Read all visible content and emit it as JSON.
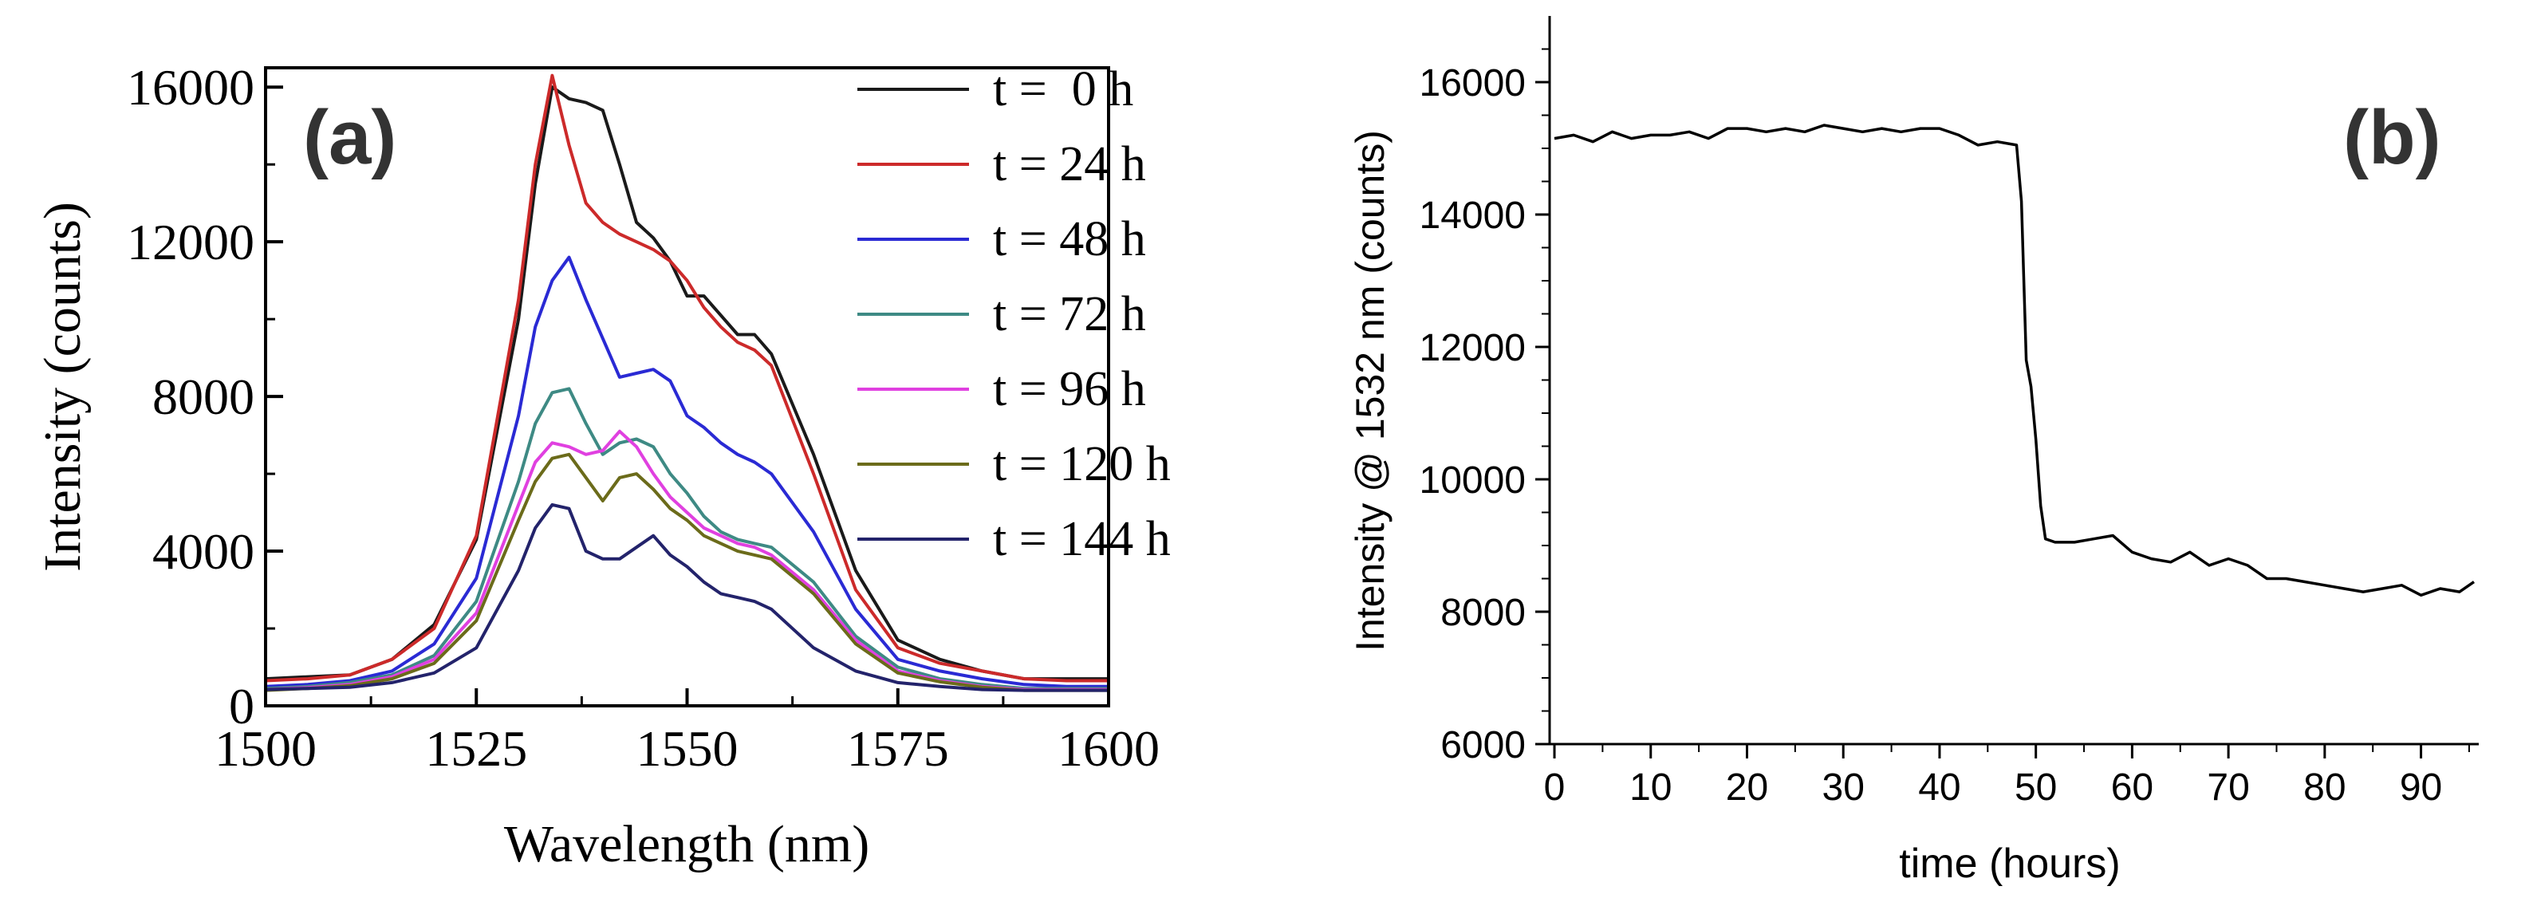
{
  "chart_data": [
    {
      "type": "line",
      "panel_label": "(a)",
      "title": "",
      "xlabel": "Wavelength (nm)",
      "ylabel": "Intensity (counts)",
      "xlim": [
        1500,
        1600
      ],
      "ylim": [
        0,
        16500
      ],
      "xticks": [
        1500,
        1525,
        1550,
        1575,
        1600
      ],
      "xtick_labels": [
        "1500",
        "1525",
        "1550",
        "1575",
        "1600"
      ],
      "yticks": [
        0,
        4000,
        8000,
        12000,
        16000
      ],
      "ytick_labels": [
        "0",
        "4000",
        "8000",
        "12000",
        "16000"
      ],
      "legend_position": "top-right",
      "series": [
        {
          "name": "t =  0 h",
          "color": "#1a1a1a",
          "x": [
            1500,
            1505,
            1510,
            1515,
            1520,
            1525,
            1530,
            1532,
            1534,
            1536,
            1538,
            1540,
            1542,
            1544,
            1546,
            1548,
            1550,
            1552,
            1554,
            1556,
            1558,
            1560,
            1565,
            1570,
            1575,
            1580,
            1585,
            1590,
            1595,
            1600
          ],
          "y": [
            700,
            750,
            800,
            1200,
            2100,
            4300,
            10000,
            13500,
            16000,
            15700,
            15600,
            15400,
            14000,
            12500,
            12100,
            11500,
            10600,
            10600,
            10100,
            9600,
            9600,
            9100,
            6500,
            3500,
            1700,
            1200,
            900,
            700,
            700,
            700
          ]
        },
        {
          "name": "t = 24 h",
          "color": "#cc2a2a",
          "x": [
            1500,
            1505,
            1510,
            1515,
            1520,
            1525,
            1530,
            1532,
            1534,
            1536,
            1538,
            1540,
            1542,
            1544,
            1546,
            1548,
            1550,
            1552,
            1554,
            1556,
            1558,
            1560,
            1565,
            1570,
            1575,
            1580,
            1585,
            1590,
            1595,
            1600
          ],
          "y": [
            650,
            700,
            800,
            1200,
            2000,
            4400,
            10500,
            14000,
            16300,
            14500,
            13000,
            12500,
            12200,
            12000,
            11800,
            11500,
            11000,
            10300,
            9800,
            9400,
            9200,
            8800,
            6000,
            3000,
            1500,
            1100,
            900,
            700,
            650,
            650
          ]
        },
        {
          "name": "t = 48 h",
          "color": "#2a2ad4",
          "x": [
            1500,
            1505,
            1510,
            1515,
            1520,
            1525,
            1530,
            1532,
            1534,
            1536,
            1538,
            1540,
            1542,
            1544,
            1546,
            1548,
            1550,
            1552,
            1554,
            1556,
            1558,
            1560,
            1565,
            1570,
            1575,
            1580,
            1585,
            1590,
            1595,
            1600
          ],
          "y": [
            500,
            550,
            650,
            900,
            1600,
            3300,
            7500,
            9800,
            11000,
            11600,
            10500,
            9500,
            8500,
            8600,
            8700,
            8400,
            7500,
            7200,
            6800,
            6500,
            6300,
            6000,
            4500,
            2500,
            1200,
            900,
            700,
            550,
            500,
            500
          ]
        },
        {
          "name": "t = 72 h",
          "color": "#3e8a84",
          "x": [
            1500,
            1505,
            1510,
            1515,
            1520,
            1525,
            1530,
            1532,
            1534,
            1536,
            1538,
            1540,
            1542,
            1544,
            1546,
            1548,
            1550,
            1552,
            1554,
            1556,
            1558,
            1560,
            1565,
            1570,
            1575,
            1580,
            1585,
            1590,
            1595,
            1600
          ],
          "y": [
            450,
            500,
            600,
            800,
            1300,
            2700,
            5800,
            7300,
            8100,
            8200,
            7300,
            6500,
            6800,
            6900,
            6700,
            6000,
            5500,
            4900,
            4500,
            4300,
            4200,
            4100,
            3200,
            1800,
            1000,
            700,
            550,
            450,
            450,
            450
          ]
        },
        {
          "name": "t = 96 h",
          "color": "#e040e0",
          "x": [
            1500,
            1505,
            1510,
            1515,
            1520,
            1525,
            1530,
            1532,
            1534,
            1536,
            1538,
            1540,
            1542,
            1544,
            1546,
            1548,
            1550,
            1552,
            1554,
            1556,
            1558,
            1560,
            1565,
            1570,
            1575,
            1580,
            1585,
            1590,
            1595,
            1600
          ],
          "y": [
            420,
            470,
            550,
            750,
            1200,
            2400,
            5200,
            6300,
            6800,
            6700,
            6500,
            6600,
            7100,
            6700,
            6000,
            5400,
            5000,
            4600,
            4400,
            4200,
            4100,
            3900,
            3000,
            1700,
            900,
            650,
            500,
            420,
            420,
            420
          ]
        },
        {
          "name": "t = 120 h",
          "color": "#6b6b1a",
          "x": [
            1500,
            1505,
            1510,
            1515,
            1520,
            1525,
            1530,
            1532,
            1534,
            1536,
            1538,
            1540,
            1542,
            1544,
            1546,
            1548,
            1550,
            1552,
            1554,
            1556,
            1558,
            1560,
            1565,
            1570,
            1575,
            1580,
            1585,
            1590,
            1595,
            1600
          ],
          "y": [
            400,
            450,
            520,
            700,
            1100,
            2200,
            4800,
            5800,
            6400,
            6500,
            5900,
            5300,
            5900,
            6000,
            5600,
            5100,
            4800,
            4400,
            4200,
            4000,
            3900,
            3800,
            2900,
            1600,
            850,
            620,
            480,
            400,
            400,
            400
          ]
        },
        {
          "name": "t = 144 h",
          "color": "#23236b",
          "x": [
            1500,
            1505,
            1510,
            1515,
            1520,
            1525,
            1530,
            1532,
            1534,
            1536,
            1538,
            1540,
            1542,
            1544,
            1546,
            1548,
            1550,
            1552,
            1554,
            1556,
            1558,
            1560,
            1565,
            1570,
            1575,
            1580,
            1585,
            1590,
            1595,
            1600
          ],
          "y": [
            420,
            450,
            480,
            600,
            850,
            1500,
            3500,
            4600,
            5200,
            5100,
            4000,
            3800,
            3800,
            4100,
            4400,
            3900,
            3600,
            3200,
            2900,
            2800,
            2700,
            2500,
            1500,
            900,
            600,
            500,
            420,
            400,
            400,
            400
          ]
        }
      ]
    },
    {
      "type": "line",
      "panel_label": "(b)",
      "title": "",
      "xlabel": "time (hours)",
      "ylabel": "Intensity @ 1532 nm (counts)",
      "xlim": [
        -0.5,
        96
      ],
      "ylim": [
        6000,
        17000
      ],
      "xticks": [
        0,
        10,
        20,
        30,
        40,
        50,
        60,
        70,
        80,
        90
      ],
      "xtick_labels": [
        "0",
        "10",
        "20",
        "30",
        "40",
        "50",
        "60",
        "70",
        "80",
        "90"
      ],
      "yticks": [
        6000,
        8000,
        10000,
        12000,
        14000,
        16000
      ],
      "ytick_labels": [
        "6000",
        "8000",
        "10000",
        "12000",
        "14000",
        "16000"
      ],
      "series": [
        {
          "name": "Intensity @ 1532 nm",
          "color": "#000000",
          "x": [
            0,
            2,
            4,
            6,
            8,
            10,
            12,
            14,
            16,
            18,
            20,
            22,
            24,
            26,
            28,
            30,
            32,
            34,
            36,
            38,
            40,
            42,
            44,
            46,
            48,
            48.5,
            49,
            49.5,
            50,
            50.5,
            51,
            52,
            54,
            56,
            58,
            60,
            62,
            64,
            66,
            68,
            70,
            72,
            74,
            76,
            78,
            80,
            82,
            84,
            86,
            88,
            90,
            92,
            94,
            95.5
          ],
          "y": [
            15150,
            15200,
            15100,
            15250,
            15150,
            15200,
            15200,
            15250,
            15150,
            15300,
            15300,
            15250,
            15300,
            15250,
            15350,
            15300,
            15250,
            15300,
            15250,
            15300,
            15300,
            15200,
            15050,
            15100,
            15050,
            14200,
            11800,
            11400,
            10600,
            9600,
            9100,
            9050,
            9050,
            9100,
            9150,
            8900,
            8800,
            8750,
            8900,
            8700,
            8800,
            8700,
            8500,
            8500,
            8450,
            8400,
            8350,
            8300,
            8350,
            8400,
            8250,
            8350,
            8300,
            8450
          ]
        }
      ]
    }
  ]
}
